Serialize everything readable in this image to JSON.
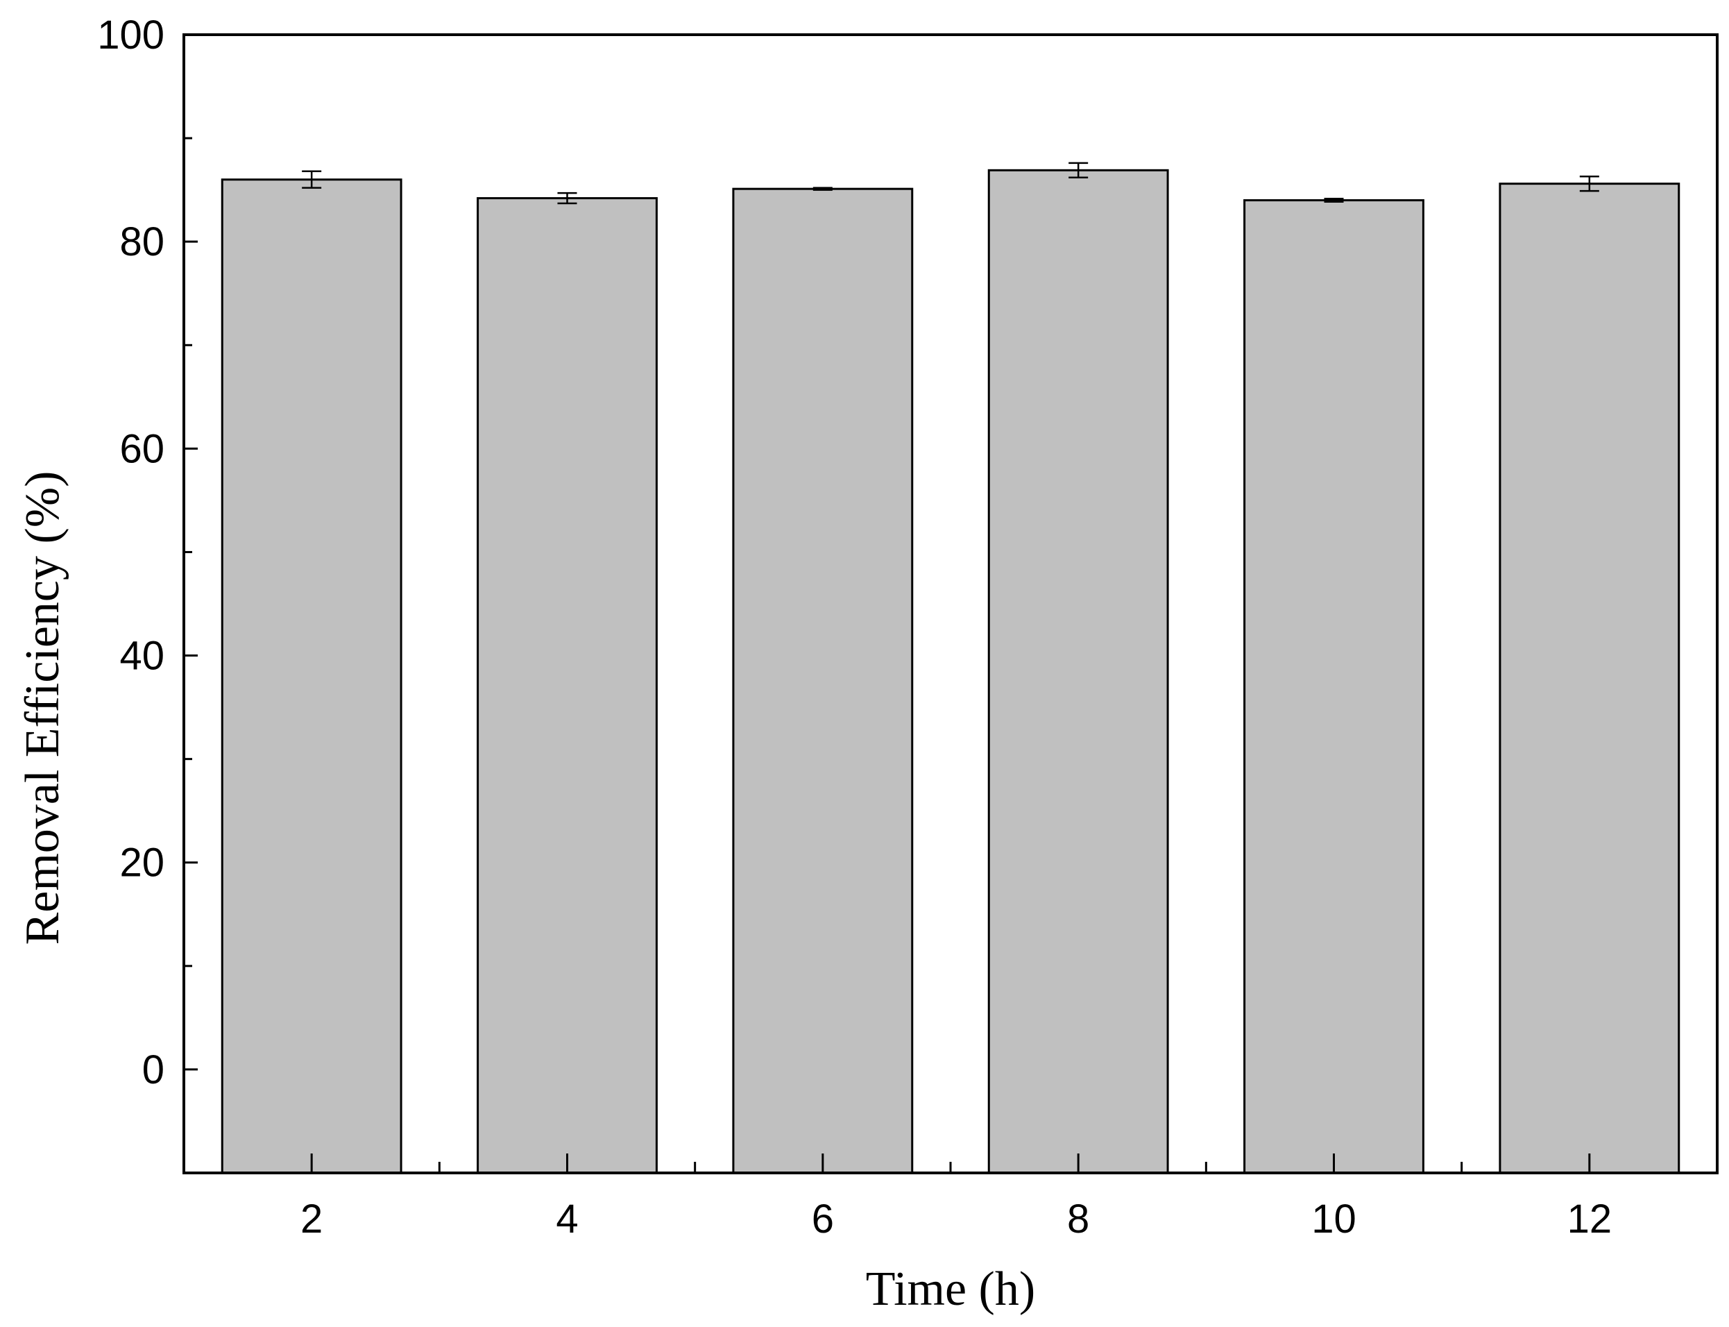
{
  "chart_data": {
    "type": "bar",
    "title": "",
    "xlabel": "Time (h)",
    "ylabel": "Removal Efficiency (%)",
    "categories": [
      "2",
      "4",
      "6",
      "8",
      "10",
      "12"
    ],
    "x": [
      2,
      4,
      6,
      8,
      10,
      12
    ],
    "values": [
      86.0,
      84.2,
      85.1,
      86.9,
      84.0,
      85.6
    ],
    "errors": [
      0.8,
      0.5,
      0.1,
      0.7,
      0.15,
      0.7
    ],
    "xlim": [
      1,
      13
    ],
    "ylim": [
      -10,
      100
    ],
    "yticks": [
      0,
      20,
      40,
      60,
      80,
      100
    ],
    "yticks_minor": [
      -10,
      10,
      30,
      50,
      70,
      90
    ],
    "xticks_minor": [
      3,
      5,
      7,
      9,
      11
    ],
    "bar_width": 1.4,
    "grid": false,
    "legend": "none",
    "colors": {
      "bar_fill": "#c0c0c0",
      "bar_edge": "#000000",
      "axis": "#000000",
      "background": "#ffffff"
    }
  }
}
